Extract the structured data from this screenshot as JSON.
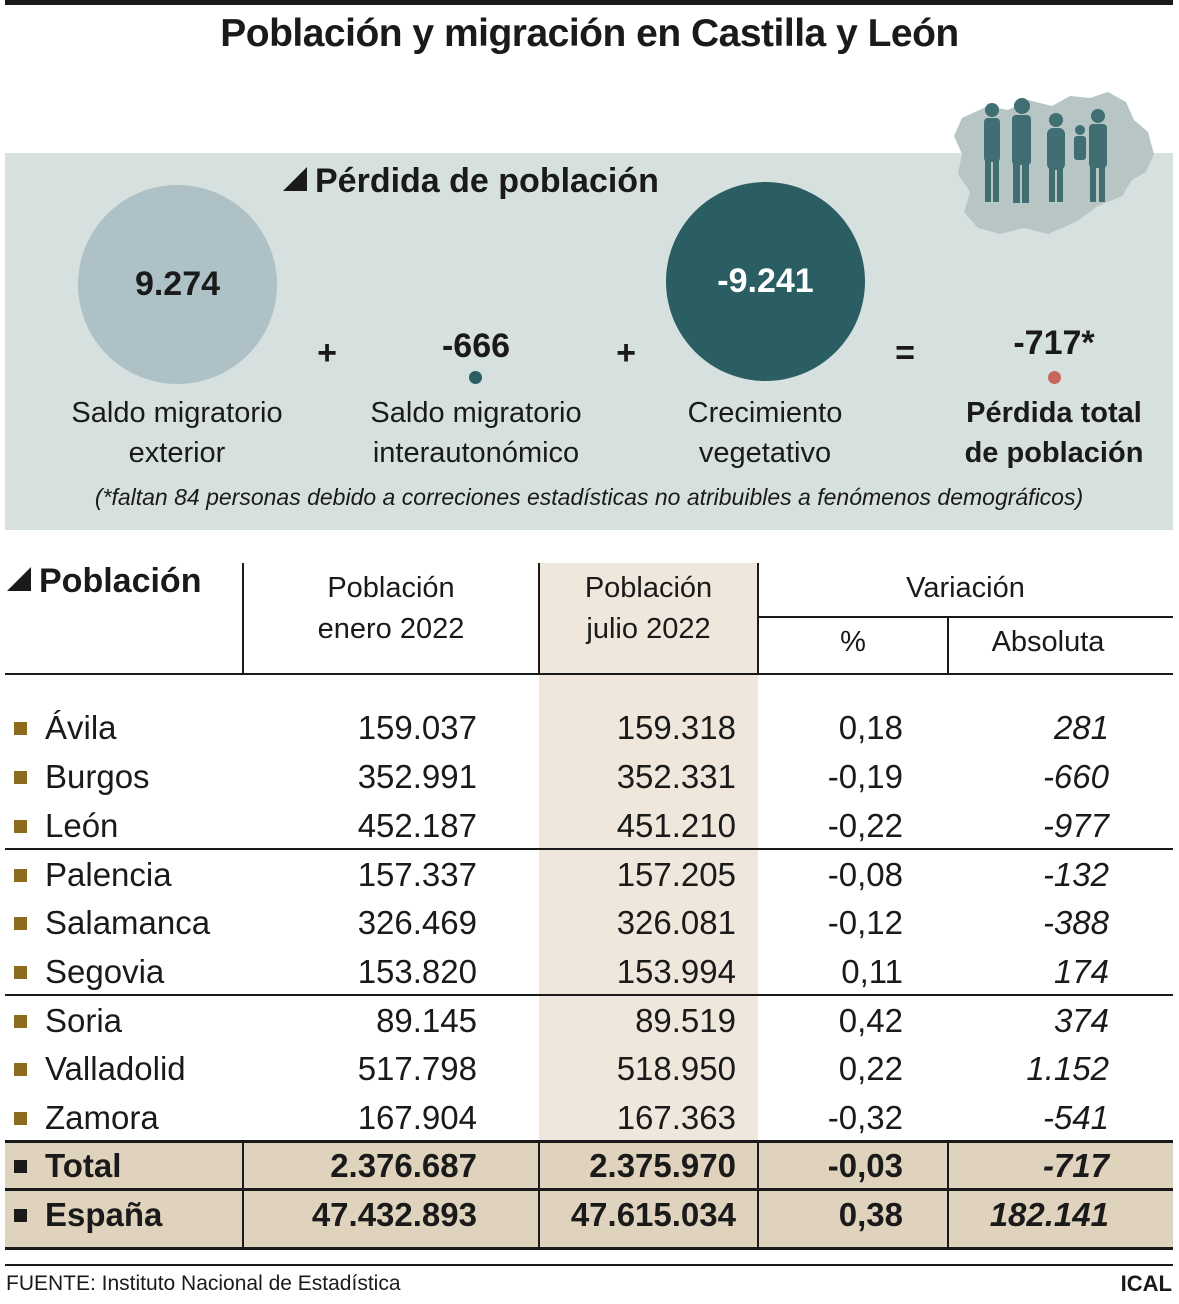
{
  "title": "Población y migración en Castilla y León",
  "loss": {
    "heading": "Pérdida de población",
    "operators": {
      "plus": "+",
      "equals": "="
    },
    "items": [
      {
        "value": "9.274",
        "label_line1": "Saldo migratorio",
        "label_line2": "exterior",
        "color": "#adc1c6"
      },
      {
        "value": "-666",
        "label_line1": "Saldo migratorio",
        "label_line2": "interautonómico",
        "color": "#2a5e63"
      },
      {
        "value": "-9.241",
        "label_line1": "Crecimiento",
        "label_line2": "vegetativo",
        "color": "#2a5e63"
      },
      {
        "value": "-717*",
        "label_line1": "Pérdida total",
        "label_line2": "de población",
        "color": "#c9665b"
      }
    ],
    "note": "(*faltan 84 personas debido a correciones estadísticas no atribuibles a fenómenos demográficos)"
  },
  "table": {
    "heading": "Población",
    "col_enero_line1": "Población",
    "col_enero_line2": "enero 2022",
    "col_julio_line1": "Población",
    "col_julio_line2": "julio 2022",
    "col_variacion": "Variación",
    "col_pct": "%",
    "col_abs": "Absoluta",
    "rows": [
      {
        "name": "Ávila",
        "enero": "159.037",
        "julio": "159.318",
        "pct": "0,18",
        "abs": "281"
      },
      {
        "name": "Burgos",
        "enero": "352.991",
        "julio": "352.331",
        "pct": "-0,19",
        "abs": "-660"
      },
      {
        "name": "León",
        "enero": "452.187",
        "julio": "451.210",
        "pct": "-0,22",
        "abs": "-977"
      },
      {
        "name": "Palencia",
        "enero": "157.337",
        "julio": "157.205",
        "pct": "-0,08",
        "abs": "-132"
      },
      {
        "name": "Salamanca",
        "enero": "326.469",
        "julio": "326.081",
        "pct": "-0,12",
        "abs": "-388"
      },
      {
        "name": "Segovia",
        "enero": "153.820",
        "julio": "153.994",
        "pct": "0,11",
        "abs": "174"
      },
      {
        "name": "Soria",
        "enero": "89.145",
        "julio": "89.519",
        "pct": "0,42",
        "abs": "374"
      },
      {
        "name": "Valladolid",
        "enero": "517.798",
        "julio": "518.950",
        "pct": "0,22",
        "abs": "1.152"
      },
      {
        "name": "Zamora",
        "enero": "167.904",
        "julio": "167.363",
        "pct": "-0,32",
        "abs": "-541"
      }
    ],
    "totals": [
      {
        "name": "Total",
        "enero": "2.376.687",
        "julio": "2.375.970",
        "pct": "-0,03",
        "abs": "-717"
      },
      {
        "name": "España",
        "enero": "47.432.893",
        "julio": "47.615.034",
        "pct": "0,38",
        "abs": "182.141"
      }
    ]
  },
  "colors": {
    "panel": "#d6e0de",
    "julio_band": "#efe7db",
    "totals_band": "#e0d3bd",
    "row_marker": "#8e6a1f",
    "accent_teal": "#2a5e63"
  },
  "source": "FUENTE: Instituto Nacional de Estadística",
  "brand": "ICAL",
  "chart_data": {
    "type": "table",
    "title": "Población y migración en Castilla y León",
    "loss_components": [
      {
        "name": "Saldo migratorio exterior",
        "value": 9274
      },
      {
        "name": "Saldo migratorio interautonómico",
        "value": -666
      },
      {
        "name": "Crecimiento vegetativo",
        "value": -9241
      },
      {
        "name": "Pérdida total de población",
        "value": -717
      }
    ],
    "columns": [
      "Población enero 2022",
      "Población julio 2022",
      "Variación %",
      "Variación Absoluta"
    ],
    "rows": [
      {
        "name": "Ávila",
        "values": [
          159037,
          159318,
          0.18,
          281
        ]
      },
      {
        "name": "Burgos",
        "values": [
          352991,
          352331,
          -0.19,
          -660
        ]
      },
      {
        "name": "León",
        "values": [
          452187,
          451210,
          -0.22,
          -977
        ]
      },
      {
        "name": "Palencia",
        "values": [
          157337,
          157205,
          -0.08,
          -132
        ]
      },
      {
        "name": "Salamanca",
        "values": [
          326469,
          326081,
          -0.12,
          -388
        ]
      },
      {
        "name": "Segovia",
        "values": [
          153820,
          153994,
          0.11,
          174
        ]
      },
      {
        "name": "Soria",
        "values": [
          89145,
          89519,
          0.42,
          374
        ]
      },
      {
        "name": "Valladolid",
        "values": [
          517798,
          518950,
          0.22,
          1152
        ]
      },
      {
        "name": "Zamora",
        "values": [
          167904,
          167363,
          -0.32,
          -541
        ]
      },
      {
        "name": "Total",
        "values": [
          2376687,
          2375970,
          -0.03,
          -717
        ]
      },
      {
        "name": "España",
        "values": [
          47432893,
          47615034,
          0.38,
          182141
        ]
      }
    ]
  }
}
